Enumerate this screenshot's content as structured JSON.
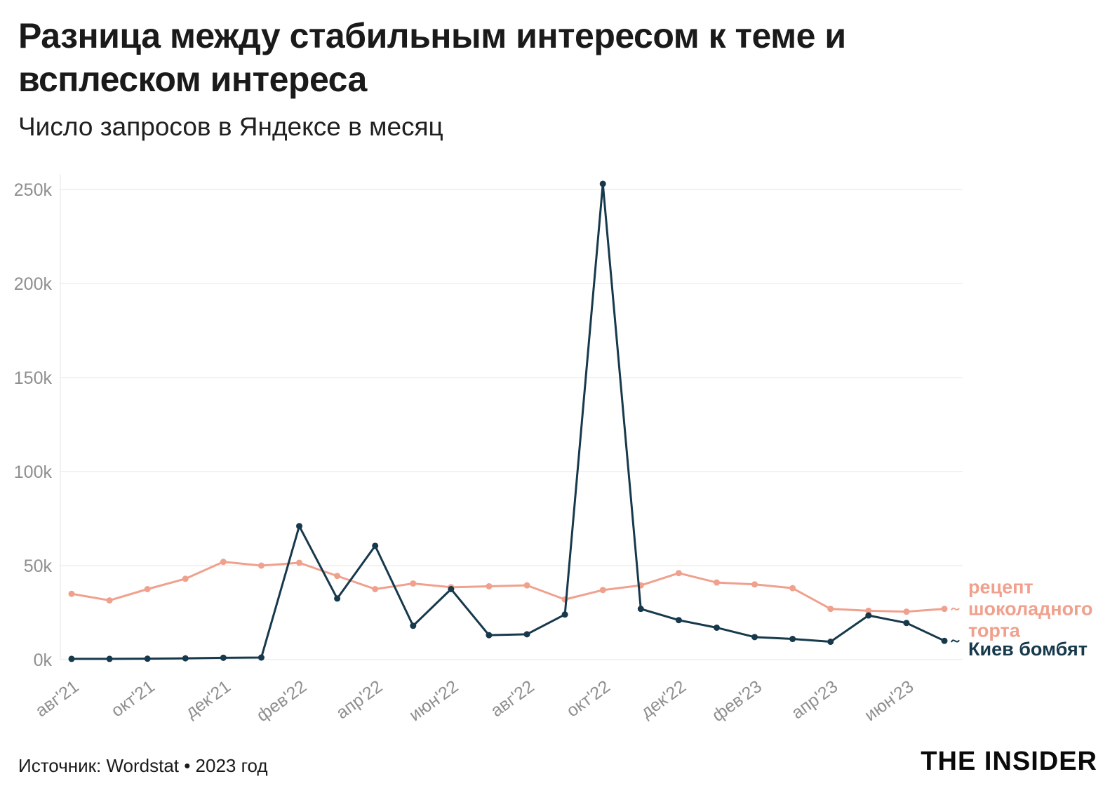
{
  "header": {
    "title_lines": [
      "Разница между стабильным интересом к теме и",
      "всплеском интереса"
    ],
    "subtitle": "Число запросов в Яндексе в месяц"
  },
  "footer": {
    "source": "Источник: Wordstat • 2023 год",
    "logo": "THE INSIDER"
  },
  "colors": {
    "cake": "#F0A18D",
    "kyiv": "#17394C",
    "grid": "#E4E4E4",
    "axis_text": "#8F8F8F",
    "title_text": "#1A1A1A"
  },
  "chart_data": {
    "type": "line",
    "title": "Разница между стабильным интересом к теме и всплеском интереса",
    "subtitle": "Число запросов в Яндексе в месяц",
    "x": [
      "авг'21",
      "сен'21",
      "окт'21",
      "ноя'21",
      "дек'21",
      "янв'22",
      "фев'22",
      "мар'22",
      "апр'22",
      "май'22",
      "июн'22",
      "июл'22",
      "авг'22",
      "сен'22",
      "окт'22",
      "ноя'22",
      "дек'22",
      "янв'23",
      "фев'23",
      "мар'23",
      "апр'23",
      "май'23",
      "июн'23",
      "июл'23"
    ],
    "x_tick_every": 2,
    "y_ticks": [
      0,
      50000,
      100000,
      150000,
      200000,
      250000
    ],
    "y_tick_labels": [
      "0k",
      "50k",
      "100k",
      "150k",
      "200k",
      "250k"
    ],
    "ylim": [
      0,
      262000
    ],
    "grid": true,
    "legend_position": "end-of-line-labels",
    "series": [
      {
        "name": "рецепт шоколадного торта",
        "color": "#F0A18D",
        "values": [
          35000,
          31500,
          37500,
          43000,
          52000,
          50000,
          51500,
          44500,
          37500,
          40500,
          38500,
          39000,
          39500,
          32000,
          37000,
          39500,
          46000,
          41000,
          40000,
          38000,
          27000,
          26000,
          25500,
          27000
        ]
      },
      {
        "name": "Киев бомбят",
        "color": "#17394C",
        "values": [
          400,
          400,
          500,
          700,
          1000,
          1100,
          71000,
          32500,
          60500,
          18000,
          37500,
          13000,
          13500,
          24000,
          253000,
          27000,
          21000,
          17000,
          12000,
          11000,
          9500,
          23500,
          19500,
          10000
        ]
      }
    ]
  }
}
